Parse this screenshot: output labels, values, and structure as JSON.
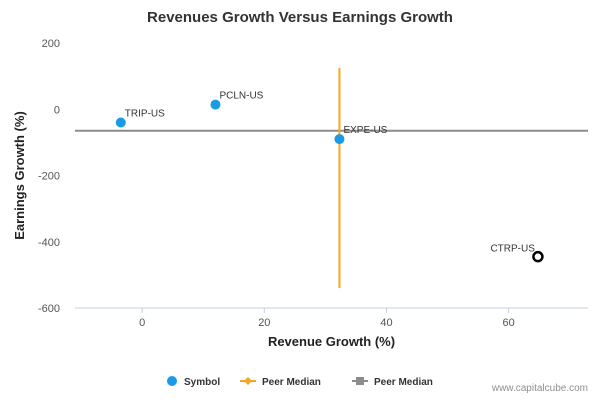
{
  "chart_data": {
    "type": "scatter",
    "title": "Revenues Growth Versus Earnings Growth",
    "xlabel": "Revenue Growth (%)",
    "ylabel": "Earnings Growth (%)",
    "xlim": [
      -11,
      73
    ],
    "ylim": [
      -600,
      200
    ],
    "xticks": [
      0,
      20,
      40,
      60
    ],
    "yticks": [
      200,
      0,
      -200,
      -400,
      -600
    ],
    "grid": false,
    "legend_position": "bottom",
    "points": [
      {
        "label": "TRIP-US",
        "x": -3.5,
        "y": -40,
        "style": "filled",
        "color": "#1a9be6"
      },
      {
        "label": "PCLN-US",
        "x": 12,
        "y": 14,
        "style": "filled",
        "color": "#1a9be6"
      },
      {
        "label": "EXPE-US",
        "x": 32.3,
        "y": -90,
        "style": "filled",
        "color": "#1a9be6"
      },
      {
        "label": "CTRP-US",
        "x": 64.8,
        "y": -445,
        "style": "hollow",
        "color": "#000000"
      }
    ],
    "peer_median": {
      "x": 32.3,
      "y": -65,
      "vertical_y_range": [
        -540,
        125
      ],
      "vertical_color": "#f5a623",
      "horizontal_color": "#8c8c8c"
    },
    "legend": [
      {
        "label": "Symbol",
        "marker": "circle",
        "color": "#1a9be6"
      },
      {
        "label": "Peer Median",
        "marker": "diamond-line",
        "color": "#f5a623"
      },
      {
        "label": "Peer Median",
        "marker": "square-line",
        "color": "#8c8c8c"
      }
    ]
  },
  "credit": "www.capitalcube.com"
}
